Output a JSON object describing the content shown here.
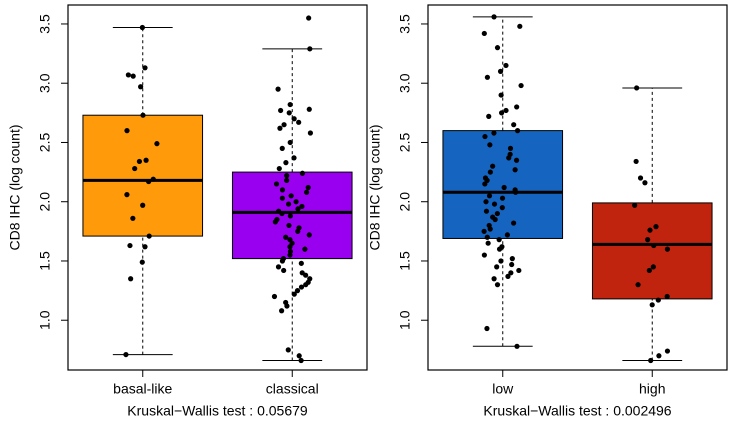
{
  "chart_data": [
    {
      "type": "box",
      "ylabel": "CD8 IHC (log count)",
      "xlabel": "Kruskal−Wallis test : 0.05679",
      "categories": [
        "basal-like",
        "classical"
      ],
      "ylim": [
        0.58,
        3.66
      ],
      "yticks": [
        {
          "value": 1,
          "label": "1.0"
        },
        {
          "value": 1.5,
          "label": "1.5"
        },
        {
          "value": 2,
          "label": "2.0"
        },
        {
          "value": 2.5,
          "label": "2.5"
        },
        {
          "value": 3,
          "label": "3.0"
        },
        {
          "value": 3.5,
          "label": "3.5"
        }
      ],
      "boxes": [
        {
          "color": "#ff9a0a",
          "whisker_low": 0.71,
          "q1": 1.71,
          "median": 2.18,
          "q3": 2.73,
          "whisker_high": 3.47,
          "points": [
            3.47,
            3.13,
            3.07,
            3.06,
            2.97,
            2.73,
            2.6,
            2.49,
            2.35,
            2.34,
            2.28,
            2.19,
            2.17,
            2.06,
            1.97,
            1.86,
            1.71,
            1.63,
            1.62,
            1.49,
            1.35,
            0.71
          ]
        },
        {
          "color": "#9a00f0",
          "whisker_low": 0.66,
          "q1": 1.52,
          "median": 1.91,
          "q3": 2.25,
          "whisker_high": 3.29,
          "points": [
            3.55,
            3.29,
            2.95,
            2.82,
            2.78,
            2.77,
            2.75,
            2.7,
            2.67,
            2.65,
            2.62,
            2.58,
            2.5,
            2.45,
            2.37,
            2.33,
            2.28,
            2.24,
            2.22,
            2.18,
            2.15,
            2.12,
            2.1,
            2.08,
            2.05,
            2.03,
            2.0,
            1.98,
            1.96,
            1.94,
            1.92,
            1.9,
            1.88,
            1.85,
            1.83,
            1.8,
            1.78,
            1.75,
            1.72,
            1.7,
            1.68,
            1.65,
            1.62,
            1.6,
            1.58,
            1.55,
            1.52,
            1.5,
            1.48,
            1.45,
            1.42,
            1.4,
            1.38,
            1.35,
            1.32,
            1.3,
            1.28,
            1.25,
            1.22,
            1.2,
            1.15,
            1.12,
            1.08,
            0.75,
            0.7,
            0.66
          ]
        }
      ]
    },
    {
      "type": "box",
      "ylabel": "CD8 IHC (log count)",
      "xlabel": "Kruskal−Wallis test : 0.002496",
      "categories": [
        "low",
        "high"
      ],
      "ylim": [
        0.58,
        3.66
      ],
      "yticks": [
        {
          "value": 1,
          "label": "1.0"
        },
        {
          "value": 1.5,
          "label": "1.5"
        },
        {
          "value": 2,
          "label": "2.0"
        },
        {
          "value": 2.5,
          "label": "2.5"
        },
        {
          "value": 3,
          "label": "3.0"
        },
        {
          "value": 3.5,
          "label": "3.5"
        }
      ],
      "boxes": [
        {
          "color": "#1565c0",
          "whisker_low": 0.78,
          "q1": 1.69,
          "median": 2.08,
          "q3": 2.6,
          "whisker_high": 3.56,
          "points": [
            3.56,
            3.48,
            3.42,
            3.3,
            3.15,
            3.1,
            3.05,
            2.98,
            2.9,
            2.8,
            2.77,
            2.75,
            2.72,
            2.65,
            2.6,
            2.58,
            2.55,
            2.48,
            2.45,
            2.4,
            2.37,
            2.35,
            2.3,
            2.27,
            2.25,
            2.2,
            2.18,
            2.15,
            2.12,
            2.1,
            2.08,
            2.05,
            2.03,
            2.0,
            1.98,
            1.95,
            1.92,
            1.9,
            1.87,
            1.85,
            1.82,
            1.8,
            1.77,
            1.75,
            1.72,
            1.7,
            1.68,
            1.65,
            1.62,
            1.6,
            1.55,
            1.52,
            1.5,
            1.47,
            1.45,
            1.42,
            1.4,
            1.37,
            1.35,
            1.3,
            0.93,
            0.78
          ]
        },
        {
          "color": "#c0240f",
          "whisker_low": 0.66,
          "q1": 1.18,
          "median": 1.64,
          "q3": 1.99,
          "whisker_high": 2.96,
          "points": [
            2.96,
            2.34,
            2.2,
            2.16,
            1.97,
            1.79,
            1.76,
            1.68,
            1.63,
            1.6,
            1.45,
            1.42,
            1.3,
            1.2,
            1.17,
            1.13,
            0.74,
            0.7,
            0.66
          ]
        }
      ]
    }
  ]
}
